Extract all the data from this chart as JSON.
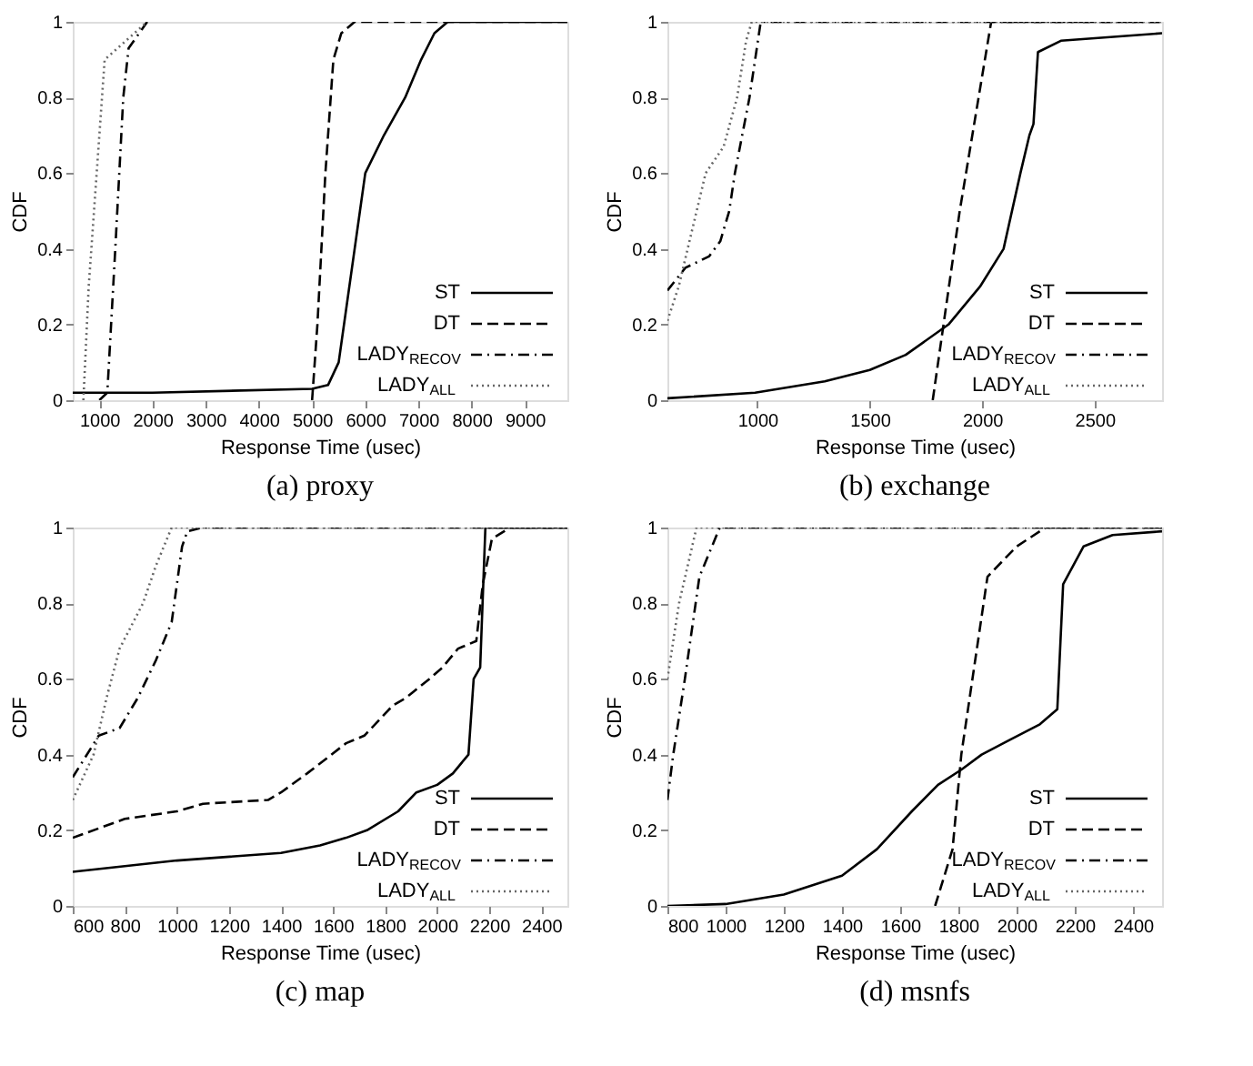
{
  "chart_data": [
    {
      "type": "line",
      "title": "(a) proxy",
      "xlabel": "Response Time (usec)",
      "ylabel": "CDF",
      "xlim": [
        500,
        9800
      ],
      "xticks": [
        1000,
        2000,
        3000,
        4000,
        5000,
        6000,
        7000,
        8000,
        9000
      ],
      "ylim": [
        0,
        1
      ],
      "yticks": [
        0,
        0.2,
        0.4,
        0.6,
        0.8,
        1
      ],
      "legend": "bottom right",
      "marker": "none",
      "series": [
        {
          "name": "ST",
          "color": "#000000",
          "line_style": "solid",
          "x": [
            500,
            2000,
            5000,
            5300,
            5500,
            5600,
            5800,
            5900,
            6000,
            6350,
            6750,
            7050,
            7300,
            7550,
            9800
          ],
          "values": [
            0.02,
            0.02,
            0.03,
            0.04,
            0.1,
            0.2,
            0.4,
            0.5,
            0.6,
            0.7,
            0.8,
            0.9,
            0.97,
            1.0,
            1.0
          ]
        },
        {
          "name": "DT",
          "color": "#000000",
          "line_style": "dashed",
          "x": [
            5000,
            5100,
            5250,
            5400,
            5550,
            5800,
            9800
          ],
          "values": [
            0.0,
            0.2,
            0.6,
            0.9,
            0.97,
            1.0,
            1.0
          ]
        },
        {
          "name": "LADY$_{RECOV}$",
          "color": "#000000",
          "line_style": "dashdot",
          "x": [
            1000,
            1150,
            1300,
            1450,
            1550,
            1900
          ],
          "values": [
            0.0,
            0.02,
            0.4,
            0.8,
            0.93,
            1.0
          ]
        },
        {
          "name": "LADY$_{ALL}$",
          "color": "#666666",
          "line_style": "dotted",
          "x": [
            700,
            800,
            1100,
            1900
          ],
          "values": [
            0.0,
            0.3,
            0.9,
            1.0
          ]
        }
      ]
    },
    {
      "type": "line",
      "title": "(b) exchange",
      "xlabel": "Response Time (usec)",
      "ylabel": "CDF",
      "xlim": [
        600,
        2800
      ],
      "xticks": [
        1000,
        1500,
        2000,
        2500
      ],
      "ylim": [
        0,
        1
      ],
      "yticks": [
        0,
        0.2,
        0.4,
        0.6,
        0.8,
        1
      ],
      "legend": "bottom right",
      "marker": "none",
      "series": [
        {
          "name": "ST",
          "color": "#000000",
          "line_style": "solid",
          "x": [
            600,
            990,
            1300,
            1500,
            1660,
            1850,
            1990,
            2095,
            2170,
            2210,
            2228,
            2248,
            2350,
            2800
          ],
          "values": [
            0.005,
            0.02,
            0.05,
            0.08,
            0.12,
            0.2,
            0.3,
            0.4,
            0.6,
            0.7,
            0.73,
            0.92,
            0.95,
            0.97
          ]
        },
        {
          "name": "DT",
          "color": "#000000",
          "line_style": "dashed",
          "x": [
            1780,
            1900,
            2040,
            2800
          ],
          "values": [
            0.0,
            0.5,
            1.0,
            1.0
          ]
        },
        {
          "name": "LADY$_{RECOV}$",
          "color": "#000000",
          "line_style": "dashdot",
          "x": [
            600,
            680,
            785,
            835,
            875,
            900,
            965,
            990,
            1015,
            2800
          ],
          "values": [
            0.29,
            0.35,
            0.38,
            0.42,
            0.5,
            0.6,
            0.8,
            0.9,
            1.0,
            1.0
          ]
        },
        {
          "name": "LADY$_{ALL}$",
          "color": "#666666",
          "line_style": "dotted",
          "x": [
            600,
            650,
            710,
            770,
            850,
            910,
            950,
            975,
            2800
          ],
          "values": [
            0.21,
            0.3,
            0.45,
            0.6,
            0.67,
            0.8,
            0.95,
            1.0,
            1.0
          ]
        }
      ]
    },
    {
      "type": "line",
      "title": "(c) map",
      "xlabel": "Response Time (usec)",
      "ylabel": "CDF",
      "xlim": [
        600,
        2500
      ],
      "xticks": [
        600,
        800,
        1000,
        1200,
        1400,
        1600,
        1800,
        2000,
        2200,
        2400
      ],
      "ylim": [
        0,
        1
      ],
      "yticks": [
        0,
        0.2,
        0.4,
        0.6,
        0.8,
        1
      ],
      "legend": "bottom right",
      "marker": "none",
      "series": [
        {
          "name": "ST",
          "color": "#000000",
          "line_style": "solid",
          "x": [
            600,
            1000,
            1400,
            1550,
            1650,
            1730,
            1850,
            1920,
            2000,
            2060,
            2120,
            2140,
            2165,
            2185,
            2500
          ],
          "values": [
            0.09,
            0.12,
            0.14,
            0.16,
            0.18,
            0.2,
            0.25,
            0.3,
            0.32,
            0.35,
            0.4,
            0.6,
            0.63,
            1.0,
            1.0
          ]
        },
        {
          "name": "DT",
          "color": "#000000",
          "line_style": "dashed",
          "x": [
            600,
            800,
            1000,
            1100,
            1350,
            1400,
            1500,
            1650,
            1720,
            1830,
            1880,
            1970,
            2020,
            2080,
            2150,
            2175,
            2210,
            2280,
            2500
          ],
          "values": [
            0.18,
            0.23,
            0.25,
            0.27,
            0.28,
            0.3,
            0.35,
            0.43,
            0.45,
            0.53,
            0.55,
            0.6,
            0.63,
            0.68,
            0.7,
            0.85,
            0.97,
            1.0,
            1.0
          ]
        },
        {
          "name": "LADY$_{RECOV}$",
          "color": "#000000",
          "line_style": "dashdot",
          "x": [
            600,
            700,
            780,
            850,
            920,
            980,
            1020,
            1040,
            1100,
            2500
          ],
          "values": [
            0.34,
            0.45,
            0.47,
            0.55,
            0.65,
            0.75,
            0.95,
            0.99,
            1.0,
            1.0
          ]
        },
        {
          "name": "LADY$_{ALL}$",
          "color": "#666666",
          "line_style": "dotted",
          "x": [
            600,
            680,
            730,
            780,
            870,
            920,
            980,
            2500
          ],
          "values": [
            0.28,
            0.4,
            0.55,
            0.68,
            0.8,
            0.9,
            1.0,
            1.0
          ]
        }
      ]
    },
    {
      "type": "line",
      "title": "(d) msnfs",
      "xlabel": "Response Time (usec)",
      "ylabel": "CDF",
      "xlim": [
        800,
        2500
      ],
      "xticks": [
        800,
        1000,
        1200,
        1400,
        1600,
        1800,
        2000,
        2200,
        2400
      ],
      "ylim": [
        0,
        1
      ],
      "yticks": [
        0,
        0.2,
        0.4,
        0.6,
        0.8,
        1
      ],
      "legend": "bottom right",
      "marker": "none",
      "series": [
        {
          "name": "ST",
          "color": "#000000",
          "line_style": "solid",
          "x": [
            800,
            1000,
            1200,
            1400,
            1520,
            1640,
            1730,
            1810,
            1880,
            1980,
            2080,
            2140,
            2160,
            2230,
            2330,
            2500
          ],
          "values": [
            0.0,
            0.005,
            0.03,
            0.08,
            0.15,
            0.25,
            0.32,
            0.36,
            0.4,
            0.44,
            0.48,
            0.52,
            0.85,
            0.95,
            0.98,
            0.99
          ]
        },
        {
          "name": "DT",
          "color": "#000000",
          "line_style": "dashed",
          "x": [
            1720,
            1740,
            1780,
            1810,
            1900,
            2000,
            2100,
            2500
          ],
          "values": [
            0.0,
            0.05,
            0.15,
            0.4,
            0.87,
            0.95,
            1.0,
            1.0
          ]
        },
        {
          "name": "LADY$_{RECOV}$",
          "color": "#000000",
          "line_style": "dashdot",
          "x": [
            800,
            820,
            860,
            910,
            980,
            2500
          ],
          "values": [
            0.28,
            0.4,
            0.6,
            0.87,
            1.0,
            1.0
          ]
        },
        {
          "name": "LADY$_{ALL}$",
          "color": "#666666",
          "line_style": "dotted",
          "x": [
            800,
            840,
            900,
            2500
          ],
          "values": [
            0.6,
            0.8,
            1.0,
            1.0
          ]
        }
      ]
    }
  ]
}
